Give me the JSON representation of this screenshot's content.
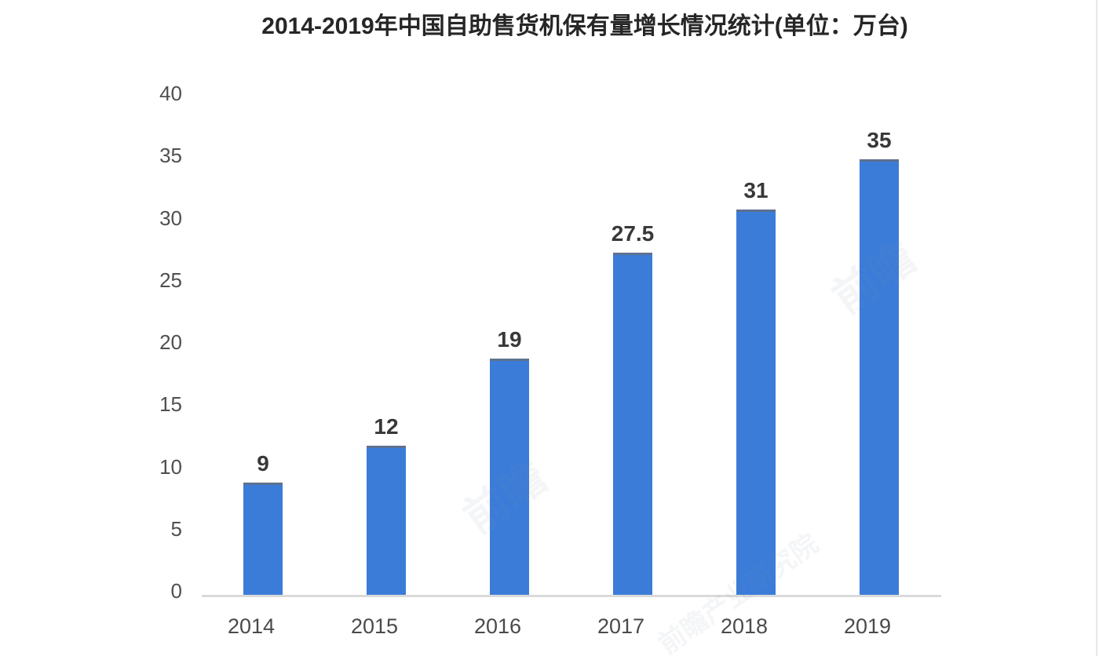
{
  "chart_data": {
    "type": "bar",
    "title": "2014-2019年中国自助售货机保有量增长情况统计(单位：万台)",
    "categories": [
      "2014",
      "2015",
      "2016",
      "2017",
      "2018",
      "2019"
    ],
    "values": [
      9,
      12,
      19,
      27.5,
      31,
      35
    ],
    "value_labels": [
      "9",
      "12",
      "19",
      "27.5",
      "31",
      "35"
    ],
    "unit": "万台",
    "xlabel": "",
    "ylabel": "",
    "ylim": [
      0,
      40
    ],
    "yticks": [
      0,
      5,
      10,
      15,
      20,
      25,
      30,
      35,
      40
    ],
    "grid": false,
    "legend_position": "none",
    "colors": {
      "bar": "#3b7cd9",
      "bar_top_edge": "#5e7190",
      "axis_line": "#dadada",
      "tick_label": "#4a4a4a",
      "value_label": "#383838",
      "title": "#262626",
      "background": "#ffffff"
    }
  },
  "watermark": {
    "text": "前瞻",
    "text_small": "前瞻产业研究院"
  }
}
